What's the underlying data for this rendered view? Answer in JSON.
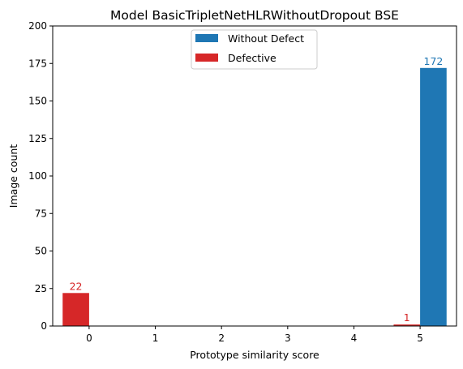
{
  "chart_data": {
    "type": "bar",
    "title": "Model BasicTripletNetHLRWithoutDropout BSE",
    "xlabel": "Prototype similarity score",
    "ylabel": "Image count",
    "x_ticks": [
      "0",
      "1",
      "2",
      "3",
      "4",
      "5"
    ],
    "y_ticks": [
      "0",
      "25",
      "50",
      "75",
      "100",
      "125",
      "150",
      "175",
      "200"
    ],
    "categories": [
      0,
      1,
      2,
      3,
      4,
      5
    ],
    "xlim": [
      -0.55,
      5.55
    ],
    "ylim": [
      0,
      200
    ],
    "legend_position": "top-center",
    "series": [
      {
        "name": "Without Defect",
        "color": "#1f77b4",
        "values": [
          0,
          0,
          0,
          0,
          0,
          172
        ],
        "labels": [
          "",
          "",
          "",
          "",
          "",
          "172"
        ]
      },
      {
        "name": "Defective",
        "color": "#d62728",
        "values": [
          22,
          0,
          0,
          0,
          0,
          1
        ],
        "labels": [
          "22",
          "",
          "",
          "",
          "",
          "1"
        ]
      }
    ]
  }
}
